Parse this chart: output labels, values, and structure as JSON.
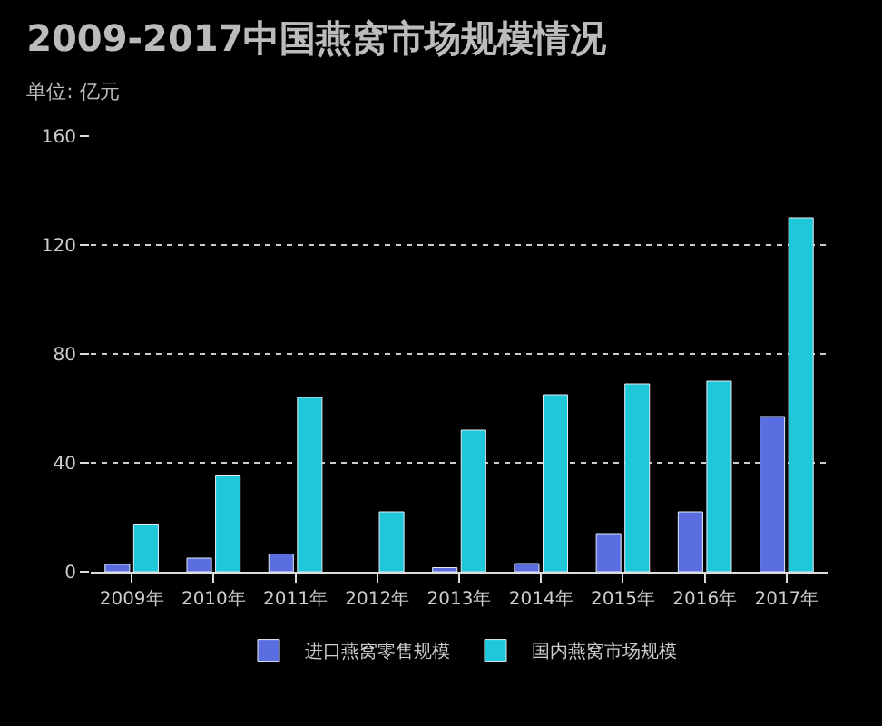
{
  "chart_data": {
    "type": "bar",
    "title": "2009-2017中国燕窝市场规模情况",
    "subtitle": "单位: 亿元",
    "categories": [
      "2009年",
      "2010年",
      "2011年",
      "2012年",
      "2013年",
      "2014年",
      "2015年",
      "2016年",
      "2017年"
    ],
    "series": [
      {
        "name": "进口燕窝零售规模",
        "color": "#5b6ee1",
        "values": [
          2.7,
          5,
          6.5,
          null,
          1.5,
          3,
          14,
          22,
          57
        ]
      },
      {
        "name": "国内燕窝市场规模",
        "color": "#1ec8d8",
        "values": [
          17.5,
          35.5,
          64,
          22,
          52,
          65,
          69,
          70,
          130
        ]
      }
    ],
    "ylim": [
      0,
      160
    ],
    "yticks": [
      0,
      40,
      80,
      120,
      160
    ],
    "grid": "y",
    "legend": "bottom"
  }
}
